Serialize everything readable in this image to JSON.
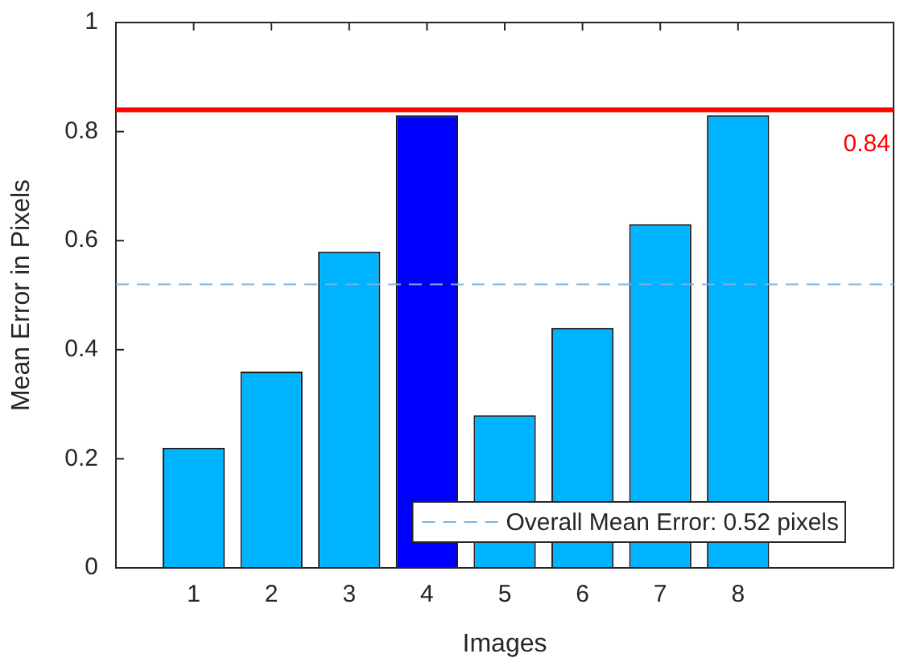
{
  "chart_data": {
    "type": "bar",
    "xlabel": "Images",
    "ylabel": "Mean Error in Pixels",
    "x": [
      1,
      2,
      3,
      4,
      5,
      6,
      7,
      8
    ],
    "values": [
      0.22,
      0.36,
      0.58,
      0.83,
      0.28,
      0.44,
      0.63,
      0.83
    ],
    "colors": [
      "#00b3ff",
      "#00b3ff",
      "#00b3ff",
      "#0000ff",
      "#00b3ff",
      "#00b3ff",
      "#00b3ff",
      "#00b3ff"
    ],
    "xlim": [
      0,
      10
    ],
    "xticks": [
      1,
      2,
      3,
      4,
      5,
      6,
      7,
      8
    ],
    "ylim": [
      0,
      1
    ],
    "yticks": [
      0,
      0.2,
      0.4,
      0.6,
      0.8,
      1
    ],
    "grid": false,
    "ref_lines": [
      {
        "axis": "y",
        "value": 0.84,
        "label": "0.84",
        "color": "#ff0000",
        "line_style": "solid"
      },
      {
        "axis": "y",
        "value": 0.52,
        "label": "Overall Mean Error: 0.52 pixels",
        "color": "#7fb2df",
        "line_style": "dashed"
      }
    ]
  }
}
